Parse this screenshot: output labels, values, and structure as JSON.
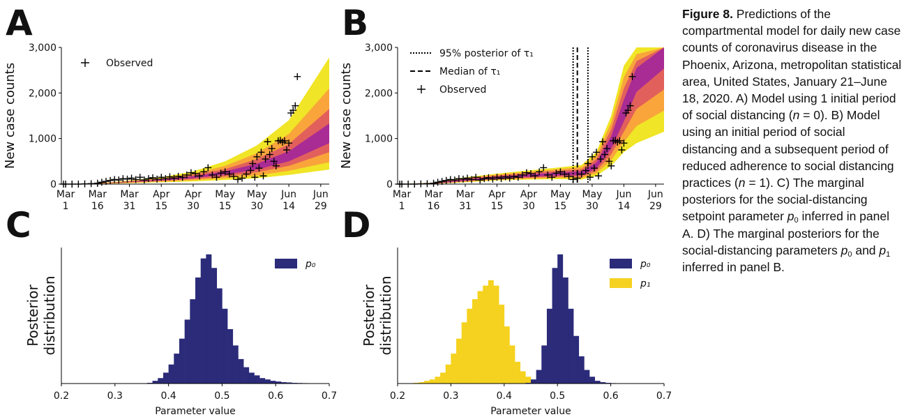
{
  "chart_data": [
    {
      "type": "scatter",
      "panel": "A",
      "ylabel": "New case counts",
      "xlim": [
        "Feb 28",
        "Jul 3"
      ],
      "xticks": [
        "Mar 1",
        "Mar 16",
        "Mar 31",
        "Apr 15",
        "Apr 30",
        "May 15",
        "May 30",
        "Jun 14",
        "Jun 29"
      ],
      "ylim": [
        0,
        3000
      ],
      "yticks": [
        0,
        {
          "value": 1000,
          "label": "1,000"
        },
        {
          "value": 2000,
          "label": "2,000"
        },
        {
          "value": 3000,
          "label": "3,000"
        }
      ],
      "band_x": [
        "Mar 1",
        "Mar 16",
        "Mar 31",
        "Apr 15",
        "Apr 30",
        "May 15",
        "May 30",
        "Jun 14",
        "Jul 3"
      ],
      "bands": [
        {
          "color": "#f0e526",
          "lower": [
            0,
            5,
            20,
            40,
            60,
            90,
            130,
            200,
            320
          ],
          "upper": [
            0,
            20,
            80,
            150,
            280,
            500,
            850,
            1400,
            2780
          ]
        },
        {
          "color": "#f9a53b",
          "lower": [
            0,
            7,
            28,
            55,
            85,
            130,
            190,
            290,
            480
          ],
          "upper": [
            0,
            17,
            68,
            125,
            230,
            400,
            680,
            1100,
            2100
          ]
        },
        {
          "color": "#e2605c",
          "lower": [
            0,
            9,
            36,
            68,
            110,
            170,
            260,
            400,
            700
          ],
          "upper": [
            0,
            15,
            60,
            110,
            200,
            330,
            550,
            880,
            1650
          ]
        },
        {
          "color": "#a92b94",
          "lower": [
            0,
            11,
            45,
            80,
            130,
            210,
            320,
            500,
            900
          ],
          "upper": [
            0,
            13,
            55,
            100,
            170,
            280,
            450,
            720,
            1330
          ]
        }
      ],
      "observed": {
        "name": "Observed",
        "x": [
          "Feb 29",
          "Mar 1",
          "Mar 4",
          "Mar 7",
          "Mar 10",
          "Mar 13",
          "Mar 16",
          "Mar 18",
          "Mar 20",
          "Mar 22",
          "Mar 24",
          "Mar 26",
          "Mar 28",
          "Mar 30",
          "Apr 1",
          "Apr 3",
          "Apr 5",
          "Apr 7",
          "Apr 9",
          "Apr 11",
          "Apr 13",
          "Apr 15",
          "Apr 17",
          "Apr 19",
          "Apr 21",
          "Apr 23",
          "Apr 25",
          "Apr 27",
          "Apr 29",
          "May 1",
          "May 3",
          "May 5",
          "May 7",
          "May 9",
          "May 11",
          "May 13",
          "May 15",
          "May 17",
          "May 19",
          "May 21",
          "May 23",
          "May 25",
          "May 27",
          "May 28",
          "May 29",
          "May 30",
          "May 31",
          "Jun 1",
          "Jun 2",
          "Jun 3",
          "Jun 4",
          "Jun 5",
          "Jun 6",
          "Jun 7",
          "Jun 8",
          "Jun 9",
          "Jun 10",
          "Jun 11",
          "Jun 12",
          "Jun 13",
          "Jun 14",
          "Jun 15",
          "Jun 16",
          "Jun 17",
          "Jun 18"
        ],
        "values": [
          0,
          0,
          0,
          0,
          5,
          10,
          20,
          40,
          60,
          80,
          100,
          90,
          120,
          110,
          130,
          100,
          150,
          90,
          120,
          140,
          110,
          150,
          120,
          160,
          130,
          170,
          150,
          200,
          250,
          230,
          180,
          270,
          360,
          200,
          150,
          240,
          270,
          220,
          170,
          100,
          130,
          220,
          300,
          450,
          150,
          600,
          350,
          700,
          180,
          550,
          930,
          650,
          780,
          500,
          400,
          950,
          960,
          920,
          950,
          750,
          900,
          1560,
          1620,
          1720,
          2360
        ]
      }
    },
    {
      "type": "scatter",
      "panel": "B",
      "ylabel": "New case counts",
      "xlim": [
        "Feb 28",
        "Jul 3"
      ],
      "xticks": [
        "Mar 1",
        "Mar 16",
        "Mar 31",
        "Apr 15",
        "Apr 30",
        "May 15",
        "May 30",
        "Jun 14",
        "Jun 29"
      ],
      "ylim": [
        0,
        3000
      ],
      "yticks": [
        0,
        {
          "value": 1000,
          "label": "1,000"
        },
        {
          "value": 2000,
          "label": "2,000"
        },
        {
          "value": 3000,
          "label": "3,000"
        }
      ],
      "band_x": [
        "Mar 1",
        "Mar 16",
        "Mar 31",
        "Apr 15",
        "Apr 30",
        "May 15",
        "May 25",
        "Jun 1",
        "Jun 8",
        "Jun 14",
        "Jun 20",
        "Jul 3"
      ],
      "bands": [
        {
          "color": "#f0e526",
          "lower": [
            0,
            5,
            40,
            80,
            100,
            110,
            100,
            180,
            400,
            700,
            900,
            1150
          ],
          "upper": [
            0,
            30,
            150,
            230,
            300,
            370,
            420,
            700,
            1500,
            2600,
            3000,
            3000
          ]
        },
        {
          "color": "#f9a53b",
          "lower": [
            0,
            8,
            51,
            95,
            120,
            138,
            132,
            235,
            525,
            925,
            1275,
            1612
          ],
          "upper": [
            0,
            26,
            134,
            208,
            270,
            332,
            372,
            625,
            1350,
            2350,
            2850,
            3000
          ]
        },
        {
          "color": "#e2605c",
          "lower": [
            0,
            10,
            63,
            110,
            140,
            165,
            165,
            290,
            650,
            1150,
            1650,
            2075
          ],
          "upper": [
            0,
            23,
            118,
            185,
            240,
            295,
            325,
            550,
            1200,
            2100,
            2700,
            3000
          ]
        },
        {
          "color": "#a92b94",
          "lower": [
            0,
            13,
            74,
            125,
            160,
            193,
            198,
            345,
            775,
            1375,
            2025,
            2537
          ],
          "upper": [
            0,
            19,
            101,
            163,
            210,
            258,
            278,
            475,
            1050,
            1850,
            2550,
            3000
          ]
        }
      ],
      "tau1": {
        "name": "95% posterior of τ₁",
        "values": [
          "May 21",
          "May 28"
        ]
      },
      "tau1_median": {
        "name": "Median of τ₁",
        "value": "May 23"
      },
      "observed": {
        "name": "Observed",
        "x": [
          "Feb 29",
          "Mar 1",
          "Mar 4",
          "Mar 7",
          "Mar 10",
          "Mar 13",
          "Mar 16",
          "Mar 18",
          "Mar 20",
          "Mar 22",
          "Mar 24",
          "Mar 26",
          "Mar 28",
          "Mar 30",
          "Apr 1",
          "Apr 3",
          "Apr 5",
          "Apr 7",
          "Apr 9",
          "Apr 11",
          "Apr 13",
          "Apr 15",
          "Apr 17",
          "Apr 19",
          "Apr 21",
          "Apr 23",
          "Apr 25",
          "Apr 27",
          "Apr 29",
          "May 1",
          "May 3",
          "May 5",
          "May 7",
          "May 9",
          "May 11",
          "May 13",
          "May 15",
          "May 17",
          "May 19",
          "May 21",
          "May 23",
          "May 25",
          "May 27",
          "May 28",
          "May 29",
          "May 30",
          "May 31",
          "Jun 1",
          "Jun 2",
          "Jun 3",
          "Jun 4",
          "Jun 5",
          "Jun 6",
          "Jun 7",
          "Jun 8",
          "Jun 9",
          "Jun 10",
          "Jun 11",
          "Jun 12",
          "Jun 13",
          "Jun 14",
          "Jun 15",
          "Jun 16",
          "Jun 17",
          "Jun 18"
        ],
        "values": [
          0,
          0,
          0,
          0,
          5,
          10,
          20,
          40,
          60,
          80,
          100,
          90,
          120,
          110,
          130,
          100,
          150,
          90,
          120,
          140,
          110,
          150,
          120,
          160,
          130,
          170,
          150,
          200,
          250,
          230,
          180,
          270,
          360,
          200,
          150,
          240,
          270,
          220,
          170,
          100,
          130,
          220,
          300,
          450,
          150,
          600,
          350,
          700,
          180,
          550,
          930,
          650,
          780,
          500,
          400,
          950,
          960,
          920,
          950,
          750,
          900,
          1560,
          1620,
          1720,
          2360
        ]
      }
    },
    {
      "type": "histogram",
      "panel": "C",
      "ylabel": [
        "Posterior",
        "distribution"
      ],
      "xlabel": "Parameter value",
      "xlim": [
        0.2,
        0.7
      ],
      "xticks": [
        0.2,
        0.3,
        0.4,
        0.5,
        0.6,
        0.7
      ],
      "ylim": [
        0,
        100
      ],
      "bins": [
        0.2,
        0.21,
        0.22,
        0.23,
        0.24,
        0.25,
        0.26,
        0.27,
        0.28,
        0.29,
        0.3,
        0.31,
        0.32,
        0.33,
        0.34,
        0.35,
        0.36,
        0.37,
        0.38,
        0.39,
        0.4,
        0.41,
        0.42,
        0.43,
        0.44,
        0.45,
        0.46,
        0.47,
        0.48,
        0.49,
        0.5,
        0.51,
        0.52,
        0.53,
        0.54,
        0.55,
        0.56,
        0.57,
        0.58,
        0.59,
        0.6,
        0.61,
        0.62,
        0.63,
        0.64,
        0.65,
        0.66,
        0.67,
        0.68,
        0.69,
        0.7
      ],
      "series": [
        {
          "name": "p₀",
          "color": "#2b2b7a",
          "values": [
            0,
            0,
            0,
            0,
            0,
            0,
            0,
            0,
            0,
            0,
            0,
            0,
            0,
            0,
            0,
            0,
            0.5,
            2,
            4,
            8,
            14,
            22,
            33,
            47,
            62,
            78,
            92,
            95,
            85,
            70,
            55,
            40,
            28,
            18,
            12,
            8,
            6,
            4,
            3,
            2,
            1.5,
            1,
            0.8,
            0.5,
            0.4,
            0.3,
            0.2,
            0.1,
            0.1,
            0
          ]
        }
      ]
    },
    {
      "type": "histogram",
      "panel": "D",
      "ylabel": [
        "Posterior",
        "distribution"
      ],
      "xlabel": "Parameter value",
      "xlim": [
        0.2,
        0.7
      ],
      "xticks": [
        0.2,
        0.3,
        0.4,
        0.5,
        0.6,
        0.7
      ],
      "ylim": [
        0,
        100
      ],
      "bins": [
        0.2,
        0.21,
        0.22,
        0.23,
        0.24,
        0.25,
        0.26,
        0.27,
        0.28,
        0.29,
        0.3,
        0.31,
        0.32,
        0.33,
        0.34,
        0.35,
        0.36,
        0.37,
        0.38,
        0.39,
        0.4,
        0.41,
        0.42,
        0.43,
        0.44,
        0.45,
        0.46,
        0.47,
        0.48,
        0.49,
        0.5,
        0.51,
        0.52,
        0.53,
        0.54,
        0.55,
        0.56,
        0.57,
        0.58,
        0.59,
        0.6,
        0.61,
        0.62,
        0.63,
        0.64,
        0.65,
        0.66,
        0.67,
        0.68,
        0.69,
        0.7
      ],
      "series": [
        {
          "name": "p₀",
          "color": "#2b2b7a",
          "values": [
            0,
            0,
            0,
            0,
            0,
            0,
            0,
            0,
            0,
            0,
            0,
            0,
            0,
            0,
            0,
            0,
            0,
            0,
            0,
            0,
            0,
            0,
            0,
            0,
            0.5,
            3,
            10,
            28,
            55,
            85,
            95,
            78,
            55,
            35,
            20,
            10,
            5,
            2,
            1,
            0.5,
            0.3,
            0.2,
            0.1,
            0,
            0,
            0,
            0,
            0,
            0,
            0
          ]
        },
        {
          "name": "p₁",
          "color": "#f5d21f",
          "values": [
            0,
            0,
            0,
            0.5,
            1,
            2,
            3,
            5,
            8,
            14,
            22,
            33,
            45,
            55,
            62,
            68,
            72,
            76,
            72,
            58,
            42,
            28,
            16,
            9,
            5,
            2,
            1,
            0.5,
            0,
            0,
            0,
            0,
            0,
            0,
            0,
            0,
            0,
            0,
            0,
            0,
            0,
            0,
            0,
            0,
            0,
            0,
            0,
            0,
            0,
            0
          ]
        }
      ]
    }
  ],
  "caption": [
    {
      "text": "Figure 8.",
      "style": "bold"
    },
    {
      "text": " Predictions of the compartmental model for daily new case counts of coronavirus disease in the Phoenix, Arizona, metropolitan statistical area, United States, January 21–June 18, 2020. A) Model using 1 initial period of social distancing ("
    },
    {
      "text": "n",
      "style": "italic"
    },
    {
      "text": " = 0). B) Model using an initial period of social distancing and a subsequent period of reduced adherence to social distancing practices ("
    },
    {
      "text": "n",
      "style": "italic"
    },
    {
      "text": " = 1). C) The marginal posteriors for the social-distancing setpoint parameter "
    },
    {
      "text": "p",
      "style": "italic"
    },
    {
      "text": "0",
      "style": "sub"
    },
    {
      "text": " inferred in panel A. D) The marginal posteriors for the social-distancing parameters "
    },
    {
      "text": "p",
      "style": "italic"
    },
    {
      "text": "0",
      "style": "sub"
    },
    {
      "text": " and "
    },
    {
      "text": "p",
      "style": "italic"
    },
    {
      "text": "1",
      "style": "sub"
    },
    {
      "text": " inferred in panel B."
    }
  ]
}
